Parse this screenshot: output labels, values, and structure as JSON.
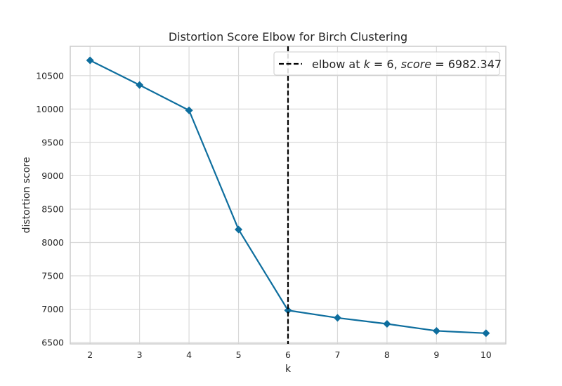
{
  "chart_data": {
    "type": "line",
    "title": "Distortion Score Elbow for Birch Clustering",
    "xlabel": "k",
    "ylabel": "distortion score",
    "x": [
      2,
      3,
      4,
      5,
      6,
      7,
      8,
      9,
      10
    ],
    "x_ticks": [
      "2",
      "3",
      "4",
      "5",
      "6",
      "7",
      "8",
      "9",
      "10"
    ],
    "y_ticks": [
      "6500",
      "7000",
      "7500",
      "8000",
      "8500",
      "9000",
      "9500",
      "10000",
      "10500"
    ],
    "xlim": [
      1.6,
      10.4
    ],
    "ylim": [
      6480,
      10940
    ],
    "grid": true,
    "series": [
      {
        "values": [
          10730,
          10360,
          9980,
          8195,
          6982.347,
          6870,
          6780,
          6675,
          6640
        ],
        "color": "#0e6e9e",
        "marker": "diamond"
      }
    ],
    "elbow": {
      "k": 6,
      "color": "#000000",
      "style": "dashed",
      "label_prefix": "elbow at ",
      "label_k": "k",
      "label_eq1": " = 6, ",
      "label_score": "score",
      "label_eq2": " = 6982.347"
    },
    "legend_position": "top-right"
  }
}
